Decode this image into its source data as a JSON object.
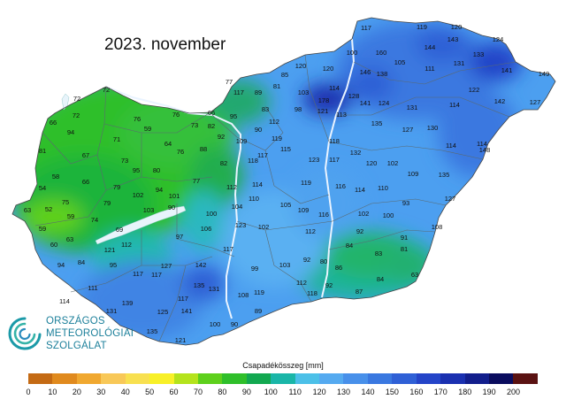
{
  "title": "2023. november",
  "legend": {
    "label": "Csapadékösszeg [mm]",
    "ticks": [
      "0",
      "10",
      "20",
      "30",
      "40",
      "50",
      "60",
      "70",
      "80",
      "90",
      "100",
      "110",
      "120",
      "130",
      "140",
      "150",
      "160",
      "170",
      "180",
      "190",
      "200"
    ],
    "colors": [
      "#c46a14",
      "#e08a1e",
      "#f0a830",
      "#f8c858",
      "#f8e050",
      "#f8f028",
      "#b4e31c",
      "#5ed01c",
      "#2fbf2a",
      "#12a850",
      "#1ab6a8",
      "#4cc0e8",
      "#55aaf0",
      "#4890ea",
      "#3a78e0",
      "#2f60d6",
      "#2444c8",
      "#1a30b0",
      "#121e8c",
      "#0a0c5e",
      "#5a1212"
    ]
  },
  "organization": {
    "line1": "ORSZÁGOS",
    "line2": "METEOROLÓGIAI",
    "line3": "SZOLGÁLAT"
  },
  "stations": [
    [
      "117",
      414,
      34
    ],
    [
      "119",
      477,
      33
    ],
    [
      "120",
      516,
      33
    ],
    [
      "124",
      563,
      47
    ],
    [
      "144",
      486,
      56
    ],
    [
      "143",
      512,
      47
    ],
    [
      "133",
      541,
      64
    ],
    [
      "160",
      431,
      62
    ],
    [
      "105",
      452,
      73
    ],
    [
      "100",
      398,
      62
    ],
    [
      "111",
      486,
      80
    ],
    [
      "131",
      519,
      74
    ],
    [
      "141",
      573,
      82
    ],
    [
      "149",
      615,
      86
    ],
    [
      "120",
      340,
      77
    ],
    [
      "120",
      371,
      80
    ],
    [
      "85",
      322,
      87
    ],
    [
      "146",
      413,
      84
    ],
    [
      "138",
      432,
      86
    ],
    [
      "122",
      536,
      104
    ],
    [
      "127",
      605,
      118
    ],
    [
      "142",
      565,
      117
    ],
    [
      "72",
      120,
      104
    ],
    [
      "72",
      87,
      114
    ],
    [
      "66",
      60,
      141
    ],
    [
      "77",
      259,
      95
    ],
    [
      "117",
      270,
      107
    ],
    [
      "89",
      292,
      107
    ],
    [
      "81",
      313,
      100
    ],
    [
      "103",
      343,
      107
    ],
    [
      "114",
      378,
      102
    ],
    [
      "128",
      400,
      111
    ],
    [
      "141",
      413,
      119
    ],
    [
      "124",
      434,
      119
    ],
    [
      "131",
      466,
      124
    ],
    [
      "114",
      514,
      121
    ],
    [
      "76",
      155,
      137
    ],
    [
      "76",
      199,
      132
    ],
    [
      "72",
      86,
      133
    ],
    [
      "66",
      239,
      130
    ],
    [
      "83",
      300,
      126
    ],
    [
      "178",
      366,
      116
    ],
    [
      "121",
      365,
      128
    ],
    [
      "95",
      264,
      134
    ],
    [
      "94",
      80,
      152
    ],
    [
      "59",
      167,
      148
    ],
    [
      "73",
      220,
      144
    ],
    [
      "82",
      239,
      145
    ],
    [
      "98",
      337,
      126
    ],
    [
      "113",
      386,
      132
    ],
    [
      "112",
      310,
      140
    ],
    [
      "135",
      426,
      142
    ],
    [
      "90",
      292,
      149
    ],
    [
      "127",
      461,
      149
    ],
    [
      "130",
      489,
      147
    ],
    [
      "119",
      313,
      159
    ],
    [
      "109",
      273,
      162
    ],
    [
      "71",
      132,
      160
    ],
    [
      "64",
      190,
      165
    ],
    [
      "76",
      204,
      174
    ],
    [
      "92",
      250,
      157
    ],
    [
      "118",
      378,
      162
    ],
    [
      "114",
      510,
      167
    ],
    [
      "114",
      545,
      165
    ],
    [
      "81",
      48,
      173
    ],
    [
      "67",
      97,
      178
    ],
    [
      "73",
      141,
      184
    ],
    [
      "88",
      230,
      171
    ],
    [
      "115",
      323,
      171
    ],
    [
      "132",
      402,
      175
    ],
    [
      "117",
      297,
      178
    ],
    [
      "118",
      286,
      184
    ],
    [
      "80",
      177,
      195
    ],
    [
      "95",
      154,
      195
    ],
    [
      "82",
      253,
      187
    ],
    [
      "123",
      355,
      183
    ],
    [
      "117",
      378,
      183
    ],
    [
      "120",
      420,
      187
    ],
    [
      "102",
      444,
      187
    ],
    [
      "148",
      548,
      172
    ],
    [
      "109",
      467,
      199
    ],
    [
      "135",
      502,
      200
    ],
    [
      "58",
      63,
      202
    ],
    [
      "66",
      97,
      208
    ],
    [
      "77",
      222,
      207
    ],
    [
      "119",
      346,
      209
    ],
    [
      "114",
      291,
      211
    ],
    [
      "112",
      262,
      214
    ],
    [
      "116",
      385,
      213
    ],
    [
      "114",
      407,
      217
    ],
    [
      "110",
      433,
      215
    ],
    [
      "127",
      509,
      227
    ],
    [
      "54",
      48,
      215
    ],
    [
      "79",
      132,
      214
    ],
    [
      "102",
      156,
      223
    ],
    [
      "94",
      180,
      217
    ],
    [
      "101",
      197,
      224
    ],
    [
      "90",
      194,
      237
    ],
    [
      "110",
      287,
      227
    ],
    [
      "105",
      323,
      234
    ],
    [
      "109",
      343,
      240
    ],
    [
      "104",
      268,
      236
    ],
    [
      "93",
      459,
      232
    ],
    [
      "52",
      55,
      239
    ],
    [
      "75",
      74,
      231
    ],
    [
      "79",
      121,
      232
    ],
    [
      "63",
      31,
      240
    ],
    [
      "59",
      80,
      247
    ],
    [
      "74",
      107,
      251
    ],
    [
      "100",
      239,
      244
    ],
    [
      "116",
      366,
      245
    ],
    [
      "102",
      411,
      244
    ],
    [
      "100",
      439,
      246
    ],
    [
      "103",
      168,
      240
    ],
    [
      "69",
      135,
      262
    ],
    [
      "106",
      233,
      261
    ],
    [
      "112",
      351,
      264
    ],
    [
      "102",
      298,
      259
    ],
    [
      "123",
      272,
      257
    ],
    [
      "92",
      407,
      264
    ],
    [
      "108",
      494,
      259
    ],
    [
      "59",
      48,
      261
    ],
    [
      "60",
      61,
      279
    ],
    [
      "63",
      79,
      273
    ],
    [
      "97",
      203,
      270
    ],
    [
      "91",
      457,
      271
    ],
    [
      "112",
      143,
      279
    ],
    [
      "117",
      258,
      284
    ],
    [
      "84",
      395,
      280
    ],
    [
      "83",
      428,
      289
    ],
    [
      "81",
      457,
      284
    ],
    [
      "121",
      124,
      285
    ],
    [
      "94",
      69,
      302
    ],
    [
      "84",
      92,
      299
    ],
    [
      "95",
      128,
      302
    ],
    [
      "127",
      188,
      303
    ],
    [
      "142",
      227,
      302
    ],
    [
      "99",
      288,
      306
    ],
    [
      "103",
      322,
      302
    ],
    [
      "92",
      347,
      296
    ],
    [
      "80",
      366,
      298
    ],
    [
      "86",
      383,
      305
    ],
    [
      "63",
      469,
      313
    ],
    [
      "117",
      156,
      312
    ],
    [
      "117",
      177,
      313
    ],
    [
      "112",
      341,
      322
    ],
    [
      "92",
      372,
      325
    ],
    [
      "84",
      430,
      318
    ],
    [
      "111",
      105,
      328
    ],
    [
      "135",
      225,
      325
    ],
    [
      "131",
      242,
      329
    ],
    [
      "119",
      293,
      333
    ],
    [
      "118",
      353,
      334
    ],
    [
      "87",
      406,
      332
    ],
    [
      "114",
      73,
      343
    ],
    [
      "139",
      144,
      345
    ],
    [
      "117",
      207,
      340
    ],
    [
      "108",
      275,
      336
    ],
    [
      "125",
      184,
      355
    ],
    [
      "141",
      211,
      354
    ],
    [
      "89",
      292,
      354
    ],
    [
      "131",
      126,
      354
    ],
    [
      "100",
      243,
      369
    ],
    [
      "90",
      265,
      369
    ],
    [
      "135",
      172,
      377
    ],
    [
      "121",
      204,
      387
    ]
  ]
}
